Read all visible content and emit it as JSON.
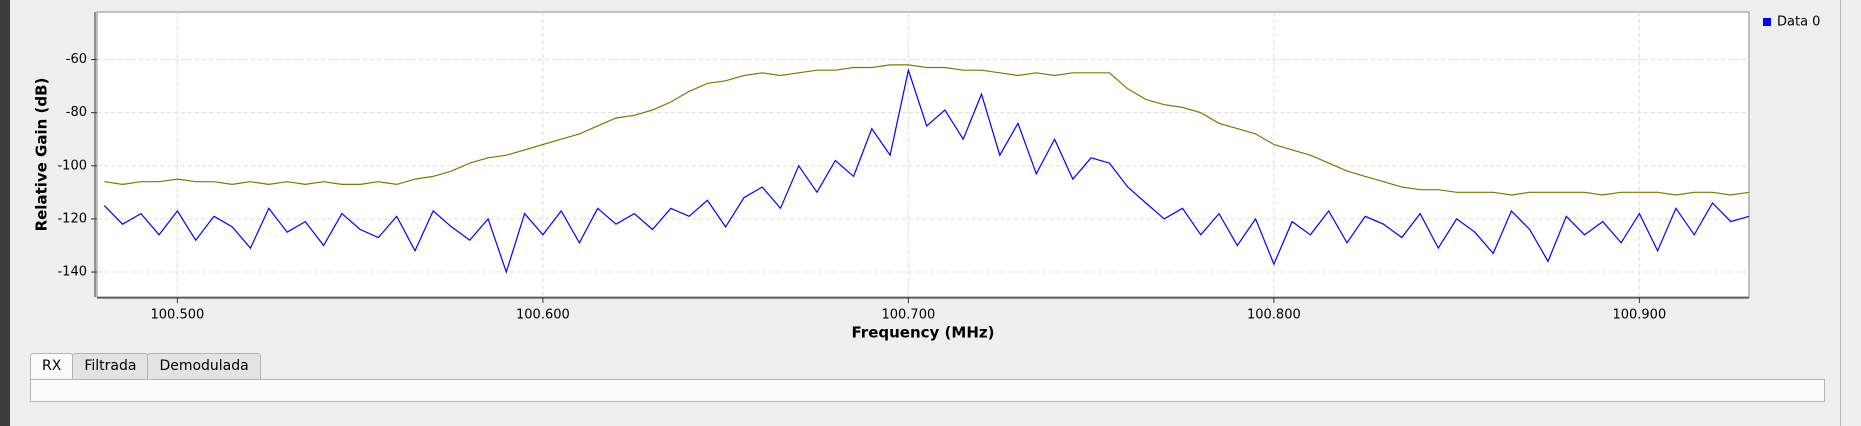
{
  "chart_data": {
    "type": "line",
    "xlabel": "Frequency (MHz)",
    "ylabel": "Relative Gain (dB)",
    "xlim": [
      100.478,
      100.93
    ],
    "ylim": [
      -149.4,
      -42.1
    ],
    "xticks": [
      {
        "value": 100.5,
        "label": "100.500"
      },
      {
        "value": 100.6,
        "label": "100.600"
      },
      {
        "value": 100.7,
        "label": "100.700"
      },
      {
        "value": 100.8,
        "label": "100.800"
      },
      {
        "value": 100.9,
        "label": "100.900"
      }
    ],
    "yticks": [
      -140,
      -120,
      -100,
      -80,
      -60
    ],
    "grid": true,
    "legend": "upper right",
    "x": [
      100.48,
      100.485,
      100.49,
      100.495,
      100.5,
      100.505,
      100.51,
      100.515,
      100.52,
      100.525,
      100.53,
      100.535,
      100.54,
      100.545,
      100.55,
      100.555,
      100.56,
      100.565,
      100.57,
      100.575,
      100.58,
      100.585,
      100.59,
      100.595,
      100.6,
      100.605,
      100.61,
      100.615,
      100.62,
      100.625,
      100.63,
      100.635,
      100.64,
      100.645,
      100.65,
      100.655,
      100.66,
      100.665,
      100.67,
      100.675,
      100.68,
      100.685,
      100.69,
      100.695,
      100.7,
      100.705,
      100.71,
      100.715,
      100.72,
      100.725,
      100.73,
      100.735,
      100.74,
      100.745,
      100.75,
      100.755,
      100.76,
      100.765,
      100.77,
      100.775,
      100.78,
      100.785,
      100.79,
      100.795,
      100.8,
      100.805,
      100.81,
      100.815,
      100.82,
      100.825,
      100.83,
      100.835,
      100.84,
      100.845,
      100.85,
      100.855,
      100.86,
      100.865,
      100.87,
      100.875,
      100.88,
      100.885,
      100.89,
      100.895,
      100.9,
      100.905,
      100.91,
      100.915,
      100.92,
      100.925,
      100.93
    ],
    "series": [
      {
        "color": "#7a7a00",
        "values": [
          -106,
          -107,
          -106,
          -106,
          -105,
          -106,
          -106,
          -107,
          -106,
          -107,
          -106,
          -107,
          -106,
          -107,
          -107,
          -106,
          -107,
          -105,
          -104,
          -102,
          -99,
          -97,
          -96,
          -94,
          -92,
          -90,
          -88,
          -85,
          -82,
          -81,
          -79,
          -76,
          -72,
          -69,
          -68,
          -66,
          -65,
          -66,
          -65,
          -64,
          -64,
          -63,
          -63,
          -62,
          -62,
          -63,
          -63,
          -64,
          -64,
          -65,
          -66,
          -65,
          -66,
          -65,
          -65,
          -65,
          -71,
          -75,
          -77,
          -78,
          -80,
          -84,
          -86,
          -88,
          -92,
          -94,
          -96,
          -99,
          -102,
          -104,
          -106,
          -108,
          -109,
          -109,
          -110,
          -110,
          -110,
          -111,
          -110,
          -110,
          -110,
          -110,
          -111,
          -110,
          -110,
          -110,
          -111,
          -110,
          -110,
          -111,
          -110
        ]
      },
      {
        "name": "Data 0",
        "color": "#0000ff",
        "values": [
          -115,
          -122,
          -118,
          -126,
          -117,
          -128,
          -119,
          -123,
          -131,
          -116,
          -125,
          -121,
          -130,
          -118,
          -124,
          -127,
          -119,
          -132,
          -117,
          -123,
          -128,
          -120,
          -140,
          -118,
          -126,
          -117,
          -129,
          -116,
          -122,
          -118,
          -124,
          -116,
          -119,
          -113,
          -123,
          -112,
          -108,
          -116,
          -100,
          -110,
          -98,
          -104,
          -86,
          -96,
          -64,
          -85,
          -79,
          -90,
          -73,
          -96,
          -84,
          -103,
          -90,
          -105,
          -97,
          -99,
          -108,
          -114,
          -120,
          -116,
          -126,
          -118,
          -130,
          -120,
          -137,
          -121,
          -126,
          -117,
          -129,
          -119,
          -122,
          -127,
          -118,
          -131,
          -120,
          -125,
          -133,
          -117,
          -124,
          -136,
          -119,
          -126,
          -121,
          -129,
          -118,
          -132,
          -116,
          -126,
          -114,
          -121,
          -119
        ]
      }
    ]
  },
  "ui": {
    "tabs": [
      "RX",
      "Filtrada",
      "Demodulada"
    ]
  }
}
